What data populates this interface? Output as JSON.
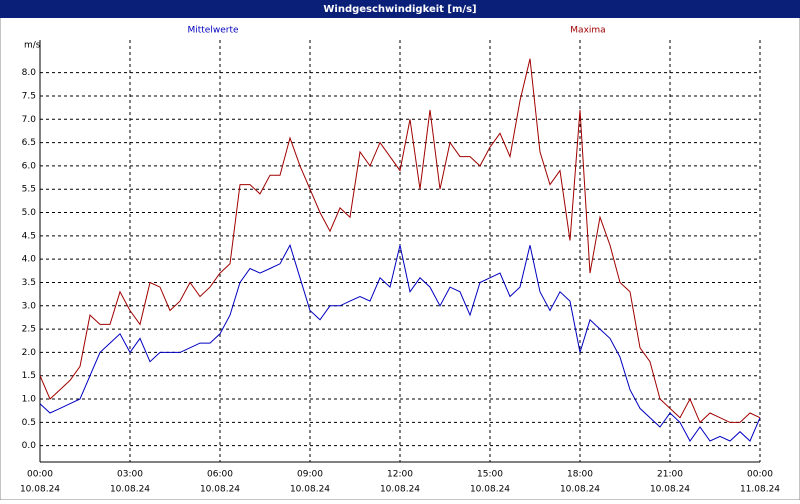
{
  "chart_data": {
    "type": "line",
    "title": "Windgeschwindigkeit [m/s]",
    "y_unit": "m/s",
    "x": [
      0,
      20,
      40,
      60,
      80,
      100,
      120,
      140,
      160,
      180,
      200,
      220,
      240,
      260,
      280,
      300,
      320,
      340,
      360,
      380,
      400,
      420,
      440,
      460,
      480,
      500,
      520,
      540,
      560,
      580,
      600,
      620,
      640,
      660,
      680,
      700,
      720,
      740,
      760,
      780,
      800,
      820,
      840,
      860,
      880,
      900,
      920,
      940,
      960,
      980,
      1000,
      1020,
      1040,
      1060,
      1080,
      1100,
      1120,
      1140,
      1160,
      1180,
      1200,
      1220,
      1240,
      1260,
      1280,
      1300,
      1320,
      1340,
      1360,
      1380,
      1400,
      1420,
      1440
    ],
    "series": [
      {
        "name": "Mittelwerte",
        "color": "#0000c0",
        "values": [
          0.9,
          0.7,
          0.8,
          0.9,
          1.0,
          1.5,
          2.0,
          2.2,
          2.4,
          2.0,
          2.3,
          1.8,
          2.0,
          2.0,
          2.0,
          2.1,
          2.2,
          2.2,
          2.4,
          2.8,
          3.5,
          3.8,
          3.7,
          3.8,
          3.9,
          4.3,
          3.6,
          2.9,
          2.7,
          3.0,
          3.0,
          3.1,
          3.2,
          3.1,
          3.6,
          3.4,
          4.3,
          3.3,
          3.6,
          3.4,
          3.0,
          3.4,
          3.3,
          2.8,
          3.5,
          3.6,
          3.7,
          3.2,
          3.4,
          4.3,
          3.3,
          2.9,
          3.3,
          3.1,
          2.0,
          2.7,
          2.5,
          2.3,
          1.9,
          1.2,
          0.8,
          0.6,
          0.4,
          0.7,
          0.5,
          0.1,
          0.4,
          0.1,
          0.2,
          0.1,
          0.3,
          0.1,
          0.6
        ]
      },
      {
        "name": "Maxima",
        "color": "#a00000",
        "values": [
          1.5,
          1.0,
          1.2,
          1.4,
          1.7,
          2.8,
          2.6,
          2.6,
          3.3,
          2.9,
          2.6,
          3.5,
          3.4,
          2.9,
          3.1,
          3.5,
          3.2,
          3.4,
          3.7,
          3.9,
          5.6,
          5.6,
          5.4,
          5.8,
          5.8,
          6.6,
          6.0,
          5.5,
          5.0,
          4.6,
          5.1,
          4.9,
          6.3,
          6.0,
          6.5,
          6.2,
          5.9,
          7.0,
          5.5,
          7.2,
          5.5,
          6.5,
          6.2,
          6.2,
          6.0,
          6.4,
          6.7,
          6.2,
          7.4,
          8.3,
          6.3,
          5.6,
          5.9,
          4.4,
          7.2,
          3.7,
          4.9,
          4.3,
          3.5,
          3.3,
          2.1,
          1.8,
          1.0,
          0.8,
          0.6,
          1.0,
          0.5,
          0.7,
          0.6,
          0.5,
          0.5,
          0.7,
          0.6
        ]
      }
    ],
    "xlim": [
      0,
      1440
    ],
    "xticks": [
      {
        "value": 0,
        "label": "00:00",
        "date": "10.08.24"
      },
      {
        "value": 180,
        "label": "03:00",
        "date": "10.08.24"
      },
      {
        "value": 360,
        "label": "06:00",
        "date": "10.08.24"
      },
      {
        "value": 540,
        "label": "09:00",
        "date": "10.08.24"
      },
      {
        "value": 720,
        "label": "12:00",
        "date": "10.08.24"
      },
      {
        "value": 900,
        "label": "15:00",
        "date": "10.08.24"
      },
      {
        "value": 1080,
        "label": "18:00",
        "date": "10.08.24"
      },
      {
        "value": 1260,
        "label": "21:00",
        "date": "10.08.24"
      },
      {
        "value": 1440,
        "label": "00:00",
        "date": "11.08.24"
      }
    ],
    "ylim": [
      -0.35,
      8.7
    ],
    "yticks": [
      {
        "value": 0,
        "label": "0.0"
      },
      0.5,
      {
        "value": 1,
        "label": "1.0"
      },
      1.5,
      {
        "value": 2,
        "label": "2.0"
      },
      2.5,
      {
        "value": 3,
        "label": "3.0"
      },
      3.5,
      {
        "value": 4,
        "label": "4.0"
      },
      4.5,
      {
        "value": 5,
        "label": "5.0"
      },
      5.5,
      {
        "value": 6,
        "label": "6.0"
      },
      6.5,
      {
        "value": 7,
        "label": "7.0"
      },
      7.5,
      {
        "value": 8,
        "label": "8.0"
      }
    ],
    "grid": true
  }
}
